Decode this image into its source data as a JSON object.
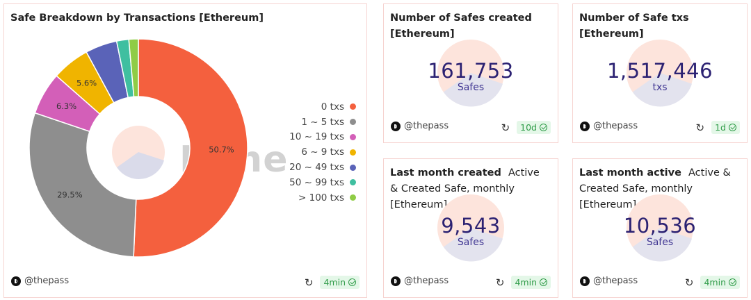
{
  "panels": {
    "breakdown": {
      "title": "Safe Breakdown by Transactions [Ethereum]",
      "author": "@thepass",
      "age": "4min",
      "watermark": "Dune"
    },
    "safes_created": {
      "title": "Number of Safes created",
      "title_line2": "[Ethereum]",
      "value": "161,753",
      "unit": "Safes",
      "author": "@thepass",
      "age": "10d"
    },
    "safe_txs": {
      "title": "Number of Safe txs [Ethereum]",
      "value": "1,517,446",
      "unit": "txs",
      "author": "@thepass",
      "age": "1d"
    },
    "last_month_created": {
      "title": "Last month created",
      "subtitle": "Active & Created Safe, monthly [Ethereum]",
      "value": "9,543",
      "unit": "Safes",
      "author": "@thepass",
      "age": "4min"
    },
    "last_month_active": {
      "title": "Last month active",
      "subtitle": "Active & Created Safe, monthly [Ethereum]",
      "value": "10,536",
      "unit": "Safes",
      "author": "@thepass",
      "age": "4min"
    }
  },
  "chart_data": {
    "type": "pie",
    "title": "Safe Breakdown by Transactions [Ethereum]",
    "donut": true,
    "legend_position": "right",
    "categories": [
      "0 txs",
      "1 ~ 5 txs",
      "10 ~ 19 txs",
      "6 ~ 9 txs",
      "20 ~ 49 txs",
      "50 ~ 99 txs",
      "> 100 txs"
    ],
    "values": [
      50.7,
      29.5,
      6.3,
      5.6,
      4.7,
      1.8,
      1.4
    ],
    "labels": [
      "50.7%",
      "29.5%",
      "6.3%",
      "5.6%",
      "",
      "",
      ""
    ],
    "colors": [
      "#f4603e",
      "#8e8e8e",
      "#d35fb8",
      "#f0b400",
      "#5a63b8",
      "#3fbfa0",
      "#8fcc46"
    ]
  },
  "icons": {
    "author_logo": "dune-logo-icon",
    "refresh": "refresh-icon",
    "check": "check-circle-icon"
  }
}
